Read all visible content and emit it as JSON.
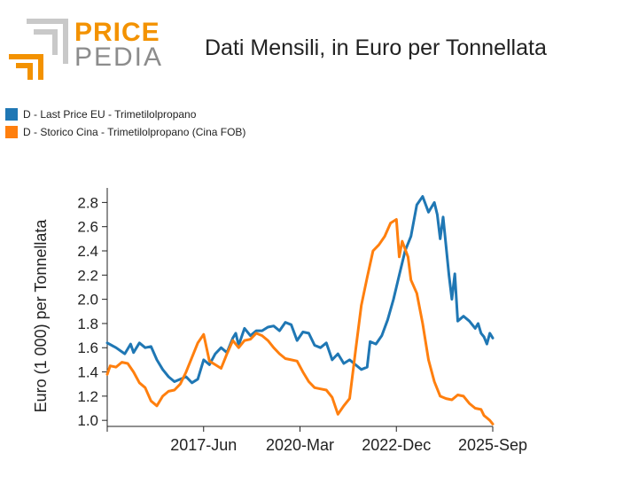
{
  "logo": {
    "line1": "PRICE",
    "line2": "PEDIA",
    "colors": {
      "orange": "#f39200",
      "gray": "#c9c9c9"
    }
  },
  "chart_data": {
    "type": "line",
    "title": "Dati Mensili, in Euro per Tonnellata",
    "ylabel": "Euro (1 000) per Tonnellata",
    "xlabel": "",
    "ylim": [
      0.95,
      2.92
    ],
    "yticks": [
      "1.0",
      "1.2",
      "1.4",
      "1.6",
      "1.8",
      "2.0",
      "2.2",
      "2.4",
      "2.6",
      "2.8"
    ],
    "xticks": [
      {
        "label": "2017-Jun",
        "date": "2017-06"
      },
      {
        "label": "2020-Mar",
        "date": "2020-03"
      },
      {
        "label": "2022-Dec",
        "date": "2022-12"
      },
      {
        "label": "2025-Sep",
        "date": "2025-09"
      }
    ],
    "xrange": [
      "2014-09",
      "2025-09"
    ],
    "legend_position": "top-left",
    "series": [
      {
        "name": "D - Last Price EU - Trimetilolpropano",
        "color": "#1f77b4",
        "points": [
          [
            "2014-09",
            1.64
          ],
          [
            "2014-12",
            1.6
          ],
          [
            "2015-03",
            1.55
          ],
          [
            "2015-05",
            1.63
          ],
          [
            "2015-06",
            1.56
          ],
          [
            "2015-08",
            1.64
          ],
          [
            "2015-10",
            1.6
          ],
          [
            "2015-12",
            1.61
          ],
          [
            "2016-02",
            1.5
          ],
          [
            "2016-04",
            1.42
          ],
          [
            "2016-06",
            1.36
          ],
          [
            "2016-08",
            1.32
          ],
          [
            "2016-10",
            1.34
          ],
          [
            "2016-12",
            1.36
          ],
          [
            "2017-02",
            1.31
          ],
          [
            "2017-04",
            1.34
          ],
          [
            "2017-06",
            1.5
          ],
          [
            "2017-08",
            1.46
          ],
          [
            "2017-10",
            1.55
          ],
          [
            "2017-12",
            1.6
          ],
          [
            "2018-02",
            1.56
          ],
          [
            "2018-04",
            1.68
          ],
          [
            "2018-05",
            1.72
          ],
          [
            "2018-06",
            1.62
          ],
          [
            "2018-08",
            1.76
          ],
          [
            "2018-10",
            1.7
          ],
          [
            "2018-12",
            1.74
          ],
          [
            "2019-02",
            1.74
          ],
          [
            "2019-04",
            1.77
          ],
          [
            "2019-06",
            1.78
          ],
          [
            "2019-08",
            1.74
          ],
          [
            "2019-10",
            1.81
          ],
          [
            "2019-12",
            1.79
          ],
          [
            "2020-02",
            1.66
          ],
          [
            "2020-04",
            1.73
          ],
          [
            "2020-06",
            1.72
          ],
          [
            "2020-08",
            1.62
          ],
          [
            "2020-10",
            1.6
          ],
          [
            "2020-12",
            1.64
          ],
          [
            "2021-02",
            1.5
          ],
          [
            "2021-04",
            1.55
          ],
          [
            "2021-06",
            1.47
          ],
          [
            "2021-08",
            1.5
          ],
          [
            "2021-10",
            1.46
          ],
          [
            "2021-12",
            1.42
          ],
          [
            "2022-02",
            1.44
          ],
          [
            "2022-03",
            1.65
          ],
          [
            "2022-05",
            1.63
          ],
          [
            "2022-07",
            1.7
          ],
          [
            "2022-09",
            1.83
          ],
          [
            "2022-11",
            2.0
          ],
          [
            "2023-01",
            2.2
          ],
          [
            "2023-03",
            2.4
          ],
          [
            "2023-05",
            2.52
          ],
          [
            "2023-07",
            2.78
          ],
          [
            "2023-09",
            2.85
          ],
          [
            "2023-11",
            2.72
          ],
          [
            "2024-01",
            2.8
          ],
          [
            "2024-02",
            2.7
          ],
          [
            "2024-03",
            2.5
          ],
          [
            "2024-04",
            2.68
          ],
          [
            "2024-06",
            2.2
          ],
          [
            "2024-07",
            2.0
          ],
          [
            "2024-08",
            2.21
          ],
          [
            "2024-09",
            1.82
          ],
          [
            "2024-11",
            1.86
          ],
          [
            "2025-01",
            1.82
          ],
          [
            "2025-03",
            1.76
          ],
          [
            "2025-04",
            1.8
          ],
          [
            "2025-05",
            1.72
          ],
          [
            "2025-06",
            1.69
          ],
          [
            "2025-07",
            1.63
          ],
          [
            "2025-08",
            1.72
          ],
          [
            "2025-09",
            1.68
          ]
        ]
      },
      {
        "name": "D - Storico Cina - Trimetilolpropano (Cina FOB)",
        "color": "#ff7f0e",
        "points": [
          [
            "2014-09",
            1.38
          ],
          [
            "2014-10",
            1.45
          ],
          [
            "2014-12",
            1.44
          ],
          [
            "2015-02",
            1.48
          ],
          [
            "2015-04",
            1.47
          ],
          [
            "2015-06",
            1.4
          ],
          [
            "2015-08",
            1.31
          ],
          [
            "2015-10",
            1.27
          ],
          [
            "2015-12",
            1.16
          ],
          [
            "2016-02",
            1.12
          ],
          [
            "2016-04",
            1.2
          ],
          [
            "2016-06",
            1.24
          ],
          [
            "2016-08",
            1.25
          ],
          [
            "2016-10",
            1.3
          ],
          [
            "2016-12",
            1.4
          ],
          [
            "2017-02",
            1.52
          ],
          [
            "2017-04",
            1.64
          ],
          [
            "2017-06",
            1.71
          ],
          [
            "2017-08",
            1.49
          ],
          [
            "2017-10",
            1.46
          ],
          [
            "2017-12",
            1.43
          ],
          [
            "2018-02",
            1.55
          ],
          [
            "2018-04",
            1.66
          ],
          [
            "2018-06",
            1.6
          ],
          [
            "2018-08",
            1.66
          ],
          [
            "2018-10",
            1.67
          ],
          [
            "2018-12",
            1.72
          ],
          [
            "2019-02",
            1.7
          ],
          [
            "2019-04",
            1.66
          ],
          [
            "2019-06",
            1.6
          ],
          [
            "2019-08",
            1.55
          ],
          [
            "2019-10",
            1.51
          ],
          [
            "2019-12",
            1.5
          ],
          [
            "2020-02",
            1.49
          ],
          [
            "2020-04",
            1.4
          ],
          [
            "2020-06",
            1.32
          ],
          [
            "2020-08",
            1.27
          ],
          [
            "2020-10",
            1.26
          ],
          [
            "2020-12",
            1.25
          ],
          [
            "2021-02",
            1.19
          ],
          [
            "2021-04",
            1.05
          ],
          [
            "2021-06",
            1.12
          ],
          [
            "2021-08",
            1.18
          ],
          [
            "2021-10",
            1.57
          ],
          [
            "2021-12",
            1.95
          ],
          [
            "2022-02",
            2.18
          ],
          [
            "2022-04",
            2.4
          ],
          [
            "2022-06",
            2.45
          ],
          [
            "2022-08",
            2.52
          ],
          [
            "2022-10",
            2.63
          ],
          [
            "2022-12",
            2.66
          ],
          [
            "2023-01",
            2.35
          ],
          [
            "2023-02",
            2.48
          ],
          [
            "2023-04",
            2.35
          ],
          [
            "2023-05",
            2.16
          ],
          [
            "2023-07",
            2.05
          ],
          [
            "2023-09",
            1.8
          ],
          [
            "2023-11",
            1.5
          ],
          [
            "2024-01",
            1.32
          ],
          [
            "2024-03",
            1.2
          ],
          [
            "2024-05",
            1.18
          ],
          [
            "2024-07",
            1.17
          ],
          [
            "2024-09",
            1.21
          ],
          [
            "2024-11",
            1.2
          ],
          [
            "2025-01",
            1.14
          ],
          [
            "2025-03",
            1.1
          ],
          [
            "2025-05",
            1.09
          ],
          [
            "2025-06",
            1.04
          ],
          [
            "2025-07",
            1.02
          ],
          [
            "2025-08",
            1.0
          ],
          [
            "2025-09",
            0.97
          ]
        ]
      }
    ]
  }
}
